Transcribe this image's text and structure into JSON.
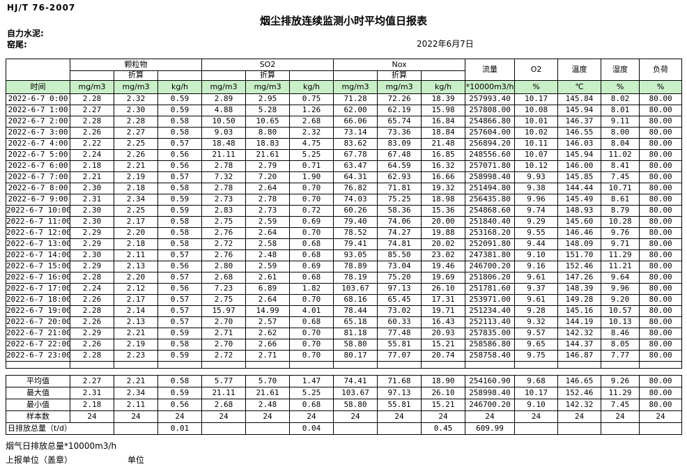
{
  "meta": {
    "standard": "HJ/T  76-2007",
    "title": "烟尘排放连续监测小时平均值日报表",
    "company": "自力水泥:",
    "location": "窑尾:",
    "date": "2022年6月7日"
  },
  "colors": {
    "header_green": "#c9efc9",
    "border": "#000000",
    "background": "#ffffff"
  },
  "table": {
    "time_label": "时间",
    "conversion_label": "折算",
    "groups": {
      "particulate": "颗粒物",
      "so2": "SO2",
      "nox": "Nox",
      "flow": "流量",
      "o2": "O2",
      "temperature": "温度",
      "humidity": "湿度",
      "load": "负荷"
    },
    "units": {
      "mg": "mg/m3",
      "kgh": "kg/h",
      "flow": "*10000m3/h",
      "percent": "%",
      "celsius": "℃"
    },
    "rows": [
      {
        "time": "2022-6-7 0:00",
        "values": [
          "2.28",
          "2.32",
          "0.59",
          "2.89",
          "2.95",
          "0.75",
          "71.28",
          "72.26",
          "18.39",
          "257993.40",
          "10.17",
          "145.84",
          "8.02",
          "80.00"
        ]
      },
      {
        "time": "2022-6-7 1:00",
        "values": [
          "2.27",
          "2.30",
          "0.59",
          "4.88",
          "5.28",
          "1.26",
          "62.00",
          "62.19",
          "15.98",
          "257808.00",
          "10.08",
          "145.94",
          "8.01",
          "80.00"
        ]
      },
      {
        "time": "2022-6-7 2:00",
        "values": [
          "2.28",
          "2.28",
          "0.58",
          "10.50",
          "10.65",
          "2.68",
          "66.06",
          "65.74",
          "16.84",
          "254866.80",
          "10.01",
          "146.37",
          "9.11",
          "80.00"
        ]
      },
      {
        "time": "2022-6-7 3:00",
        "values": [
          "2.26",
          "2.27",
          "0.58",
          "9.03",
          "8.80",
          "2.32",
          "73.14",
          "73.36",
          "18.84",
          "257604.00",
          "10.02",
          "146.55",
          "8.00",
          "80.00"
        ]
      },
      {
        "time": "2022-6-7 4:00",
        "values": [
          "2.22",
          "2.25",
          "0.57",
          "18.48",
          "18.83",
          "4.75",
          "83.62",
          "83.09",
          "21.48",
          "256894.20",
          "10.11",
          "146.03",
          "8.04",
          "80.00"
        ]
      },
      {
        "time": "2022-6-7 5:00",
        "values": [
          "2.24",
          "2.26",
          "0.56",
          "21.11",
          "21.61",
          "5.25",
          "67.78",
          "67.48",
          "16.85",
          "248556.60",
          "10.07",
          "145.94",
          "11.02",
          "80.00"
        ]
      },
      {
        "time": "2022-6-7 6:00",
        "values": [
          "2.18",
          "2.21",
          "0.56",
          "2.78",
          "2.79",
          "0.71",
          "63.47",
          "64.59",
          "16.32",
          "257071.80",
          "10.12",
          "146.00",
          "8.41",
          "80.00"
        ]
      },
      {
        "time": "2022-6-7 7:00",
        "values": [
          "2.21",
          "2.19",
          "0.57",
          "7.32",
          "7.20",
          "1.90",
          "64.31",
          "62.93",
          "16.66",
          "258998.40",
          "9.93",
          "145.85",
          "7.45",
          "80.00"
        ]
      },
      {
        "time": "2022-6-7 8:00",
        "values": [
          "2.30",
          "2.18",
          "0.58",
          "2.78",
          "2.64",
          "0.70",
          "76.82",
          "71.81",
          "19.32",
          "251494.80",
          "9.38",
          "144.44",
          "10.71",
          "80.00"
        ]
      },
      {
        "time": "2022-6-7 9:00",
        "values": [
          "2.31",
          "2.34",
          "0.59",
          "2.73",
          "2.78",
          "0.70",
          "74.03",
          "75.25",
          "18.98",
          "256435.80",
          "9.96",
          "145.49",
          "8.61",
          "80.00"
        ]
      },
      {
        "time": "2022-6-7 10:00",
        "values": [
          "2.30",
          "2.25",
          "0.59",
          "2.83",
          "2.73",
          "0.72",
          "60.26",
          "58.36",
          "15.36",
          "254868.60",
          "9.74",
          "148.93",
          "8.79",
          "80.00"
        ]
      },
      {
        "time": "2022-6-7 11:00",
        "values": [
          "2.30",
          "2.17",
          "0.58",
          "2.75",
          "2.59",
          "0.69",
          "79.40",
          "74.06",
          "20.00",
          "251840.40",
          "9.29",
          "145.60",
          "10.28",
          "80.00"
        ]
      },
      {
        "time": "2022-6-7 12:00",
        "values": [
          "2.29",
          "2.20",
          "0.58",
          "2.76",
          "2.64",
          "0.70",
          "78.52",
          "74.27",
          "19.88",
          "253168.20",
          "9.55",
          "146.46",
          "9.76",
          "80.00"
        ]
      },
      {
        "time": "2022-6-7 13:00",
        "values": [
          "2.29",
          "2.18",
          "0.58",
          "2.72",
          "2.58",
          "0.68",
          "79.41",
          "74.81",
          "20.02",
          "252091.80",
          "9.44",
          "148.09",
          "9.71",
          "80.00"
        ]
      },
      {
        "time": "2022-6-7 14:00",
        "values": [
          "2.30",
          "2.11",
          "0.57",
          "2.76",
          "2.48",
          "0.68",
          "93.05",
          "85.50",
          "23.02",
          "247381.80",
          "9.10",
          "151.70",
          "11.29",
          "80.00"
        ]
      },
      {
        "time": "2022-6-7 15:00",
        "values": [
          "2.29",
          "2.13",
          "0.56",
          "2.80",
          "2.59",
          "0.69",
          "78.89",
          "73.04",
          "19.46",
          "246700.20",
          "9.16",
          "152.46",
          "11.21",
          "80.00"
        ]
      },
      {
        "time": "2022-6-7 16:00",
        "values": [
          "2.28",
          "2.20",
          "0.57",
          "2.68",
          "2.61",
          "0.68",
          "78.19",
          "75.20",
          "19.69",
          "251806.20",
          "9.61",
          "147.26",
          "9.64",
          "80.00"
        ]
      },
      {
        "time": "2022-6-7 17:00",
        "values": [
          "2.24",
          "2.12",
          "0.56",
          "7.23",
          "6.89",
          "1.82",
          "103.67",
          "97.13",
          "26.10",
          "251781.60",
          "9.37",
          "148.39",
          "9.96",
          "80.00"
        ]
      },
      {
        "time": "2022-6-7 18:00",
        "values": [
          "2.26",
          "2.17",
          "0.57",
          "2.75",
          "2.64",
          "0.70",
          "68.16",
          "65.45",
          "17.31",
          "253971.00",
          "9.61",
          "149.28",
          "9.20",
          "80.00"
        ]
      },
      {
        "time": "2022-6-7 19:00",
        "values": [
          "2.28",
          "2.14",
          "0.57",
          "15.97",
          "14.99",
          "4.01",
          "78.44",
          "73.02",
          "19.71",
          "251234.40",
          "9.28",
          "145.16",
          "10.57",
          "80.00"
        ]
      },
      {
        "time": "2022-6-7 20:00",
        "values": [
          "2.26",
          "2.13",
          "0.57",
          "2.70",
          "2.57",
          "0.68",
          "65.18",
          "60.33",
          "16.43",
          "252113.40",
          "9.32",
          "144.19",
          "10.13",
          "80.00"
        ]
      },
      {
        "time": "2022-6-7 21:00",
        "values": [
          "2.29",
          "2.21",
          "0.59",
          "2.71",
          "2.62",
          "0.70",
          "81.18",
          "77.48",
          "20.93",
          "257835.00",
          "9.57",
          "142.32",
          "8.46",
          "80.00"
        ]
      },
      {
        "time": "2022-6-7 22:00",
        "values": [
          "2.26",
          "2.19",
          "0.58",
          "2.70",
          "2.66",
          "0.70",
          "58.80",
          "55.81",
          "15.21",
          "258586.80",
          "9.65",
          "144.37",
          "8.05",
          "80.00"
        ]
      },
      {
        "time": "2022-6-7 23:00",
        "values": [
          "2.28",
          "2.23",
          "0.59",
          "2.72",
          "2.71",
          "0.70",
          "80.17",
          "77.07",
          "20.74",
          "258758.40",
          "9.75",
          "146.87",
          "7.77",
          "80.00"
        ]
      }
    ],
    "summary": [
      {
        "label": "平均值",
        "values": [
          "2.27",
          "2.21",
          "0.58",
          "5.77",
          "5.70",
          "1.47",
          "74.41",
          "71.68",
          "18.90",
          "254160.90",
          "9.68",
          "146.65",
          "9.26",
          "80.00"
        ]
      },
      {
        "label": "最大值",
        "values": [
          "2.31",
          "2.34",
          "0.59",
          "21.11",
          "21.61",
          "5.25",
          "103.67",
          "97.13",
          "26.10",
          "258998.40",
          "10.17",
          "152.46",
          "11.29",
          "80.00"
        ]
      },
      {
        "label": "最小值",
        "values": [
          "2.18",
          "2.11",
          "0.56",
          "2.68",
          "2.48",
          "0.68",
          "58.80",
          "55.81",
          "15.21",
          "246700.20",
          "9.10",
          "142.32",
          "7.45",
          "80.00"
        ]
      },
      {
        "label": "样本数",
        "values": [
          "24",
          "24",
          "24",
          "24",
          "24",
          "24",
          "24",
          "24",
          "24",
          "24",
          "24",
          "24",
          "24",
          "24"
        ]
      }
    ],
    "daily_total": {
      "label": "日排放总量（t/d）",
      "values": [
        "",
        "0.01",
        "",
        "",
        "0.04",
        "",
        "",
        "0.45",
        "609.99",
        "",
        "",
        "",
        ""
      ]
    }
  },
  "footer": {
    "flow_note": "烟气日排放总量*10000m3/h",
    "report_unit": "上报单位（盖章）",
    "unit_label": "单位"
  }
}
